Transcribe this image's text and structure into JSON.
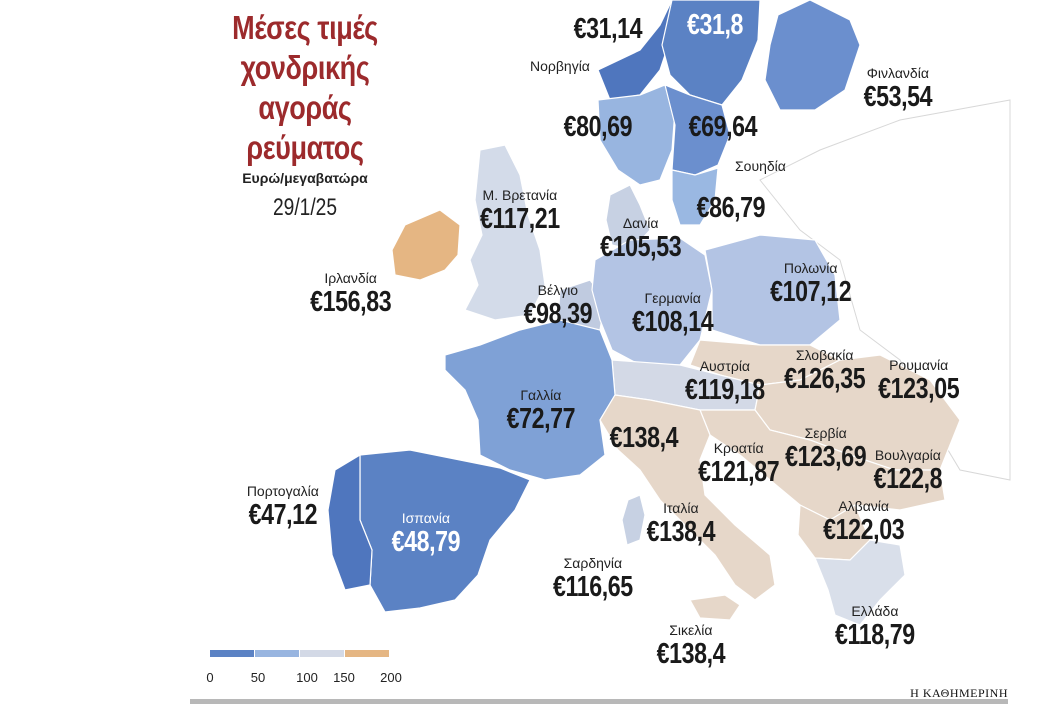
{
  "title": "Μέσες τιμές χονδρικής αγοράς ρεύματος",
  "subtitle": "Ευρώ/μεγαβατώρα",
  "date": "29/1/25",
  "brand": "Η ΚΑΘΗΜΕΡΙΝΗ",
  "colors": {
    "title": "#9c2a2c",
    "bin_0_50": "#5b82c4",
    "bin_50_100": "#98b5e0",
    "bin_100_150": "#d3d9e6",
    "bin_150_200": "#e5b683",
    "above_200": "#e6d7c9",
    "border": "#ffffff"
  },
  "legend": {
    "ticks": [
      "0",
      "50",
      "100",
      "150",
      "200"
    ]
  },
  "countries": [
    {
      "name": "",
      "value": "€31,14"
    },
    {
      "name": "",
      "value": "€31,8"
    },
    {
      "name": "Νορβηγία",
      "value": "€80,69"
    },
    {
      "name": "",
      "value": "€69,64"
    },
    {
      "name": "Φινλανδία",
      "value": "€53,54"
    },
    {
      "name": "Σουηδία",
      "value": "€86,79"
    },
    {
      "name": "Μ. Βρετανία",
      "value": "€117,21"
    },
    {
      "name": "Δανία",
      "value": "€105,53"
    },
    {
      "name": "Ιρλανδία",
      "value": "€156,83"
    },
    {
      "name": "Βέλγιο",
      "value": "€98,39"
    },
    {
      "name": "Γερμανία",
      "value": "€108,14"
    },
    {
      "name": "Πολωνία",
      "value": "€107,12"
    },
    {
      "name": "Σλοβακία",
      "value": "€126,35"
    },
    {
      "name": "Ρουμανία",
      "value": "€123,05"
    },
    {
      "name": "Αυστρία",
      "value": "€119,18"
    },
    {
      "name": "Γαλλία",
      "value": "€72,77"
    },
    {
      "name": "",
      "value": "€138,4"
    },
    {
      "name": "Κροατία",
      "value": "€121,87"
    },
    {
      "name": "Σερβία",
      "value": "€123,69"
    },
    {
      "name": "Βουλγαρία",
      "value": "€122,8"
    },
    {
      "name": "Πορτογαλία",
      "value": "€47,12"
    },
    {
      "name": "Ισπανία",
      "value": "€48,79"
    },
    {
      "name": "Ιταλία",
      "value": "€138,4"
    },
    {
      "name": "Αλβανία",
      "value": "€122,03"
    },
    {
      "name": "Σαρδηνία",
      "value": "€116,65"
    },
    {
      "name": "Ελλάδα",
      "value": "€118,79"
    },
    {
      "name": "Σικελία",
      "value": "€138,4"
    }
  ],
  "chart_data": {
    "type": "map",
    "scale": {
      "min": 0,
      "max": 200,
      "bins": [
        0,
        50,
        100,
        150,
        200
      ]
    },
    "regions": [
      {
        "region": "Norway (north)",
        "value": 31.14
      },
      {
        "region": "Sweden (north)",
        "value": 31.8
      },
      {
        "region": "Νορβηγία",
        "value": 80.69
      },
      {
        "region": "Sweden (central)",
        "value": 69.64
      },
      {
        "region": "Φινλανδία",
        "value": 53.54
      },
      {
        "region": "Σουηδία",
        "value": 86.79
      },
      {
        "region": "Μ. Βρετανία",
        "value": 117.21
      },
      {
        "region": "Δανία",
        "value": 105.53
      },
      {
        "region": "Ιρλανδία",
        "value": 156.83
      },
      {
        "region": "Βέλγιο",
        "value": 98.39
      },
      {
        "region": "Γερμανία",
        "value": 108.14
      },
      {
        "region": "Πολωνία",
        "value": 107.12
      },
      {
        "region": "Σλοβακία",
        "value": 126.35
      },
      {
        "region": "Ρουμανία",
        "value": 123.05
      },
      {
        "region": "Αυστρία",
        "value": 119.18
      },
      {
        "region": "Γαλλία",
        "value": 72.77
      },
      {
        "region": "Italy (north)",
        "value": 138.4
      },
      {
        "region": "Κροατία",
        "value": 121.87
      },
      {
        "region": "Σερβία",
        "value": 123.69
      },
      {
        "region": "Βουλγαρία",
        "value": 122.8
      },
      {
        "region": "Πορτογαλία",
        "value": 47.12
      },
      {
        "region": "Ισπανία",
        "value": 48.79
      },
      {
        "region": "Ιταλία",
        "value": 138.4
      },
      {
        "region": "Αλβανία",
        "value": 122.03
      },
      {
        "region": "Σαρδηνία",
        "value": 116.65
      },
      {
        "region": "Ελλάδα",
        "value": 118.79
      },
      {
        "region": "Σικελία",
        "value": 138.4
      }
    ]
  }
}
